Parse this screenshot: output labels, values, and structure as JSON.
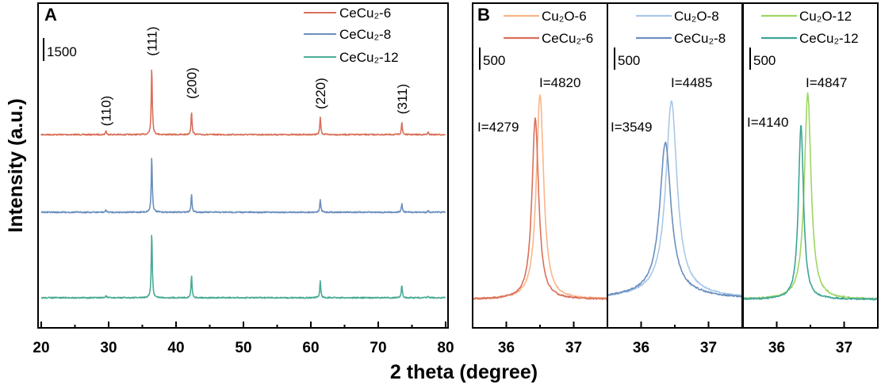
{
  "chart_data": [
    {
      "type": "line",
      "panel_label": "A",
      "xlabel": "2 theta (degree)",
      "ylabel": "Intensity (a.u.)",
      "xlim": [
        20,
        80
      ],
      "xticks": [
        "20",
        "30",
        "40",
        "50",
        "60",
        "70",
        "80"
      ],
      "scale_bar": "1500",
      "scale_bar_value": 1500,
      "legend_placement": "top-right",
      "reflections": [
        {
          "label": "(110)",
          "x": 29.6
        },
        {
          "label": "(111)",
          "x": 36.4
        },
        {
          "label": "(200)",
          "x": 42.3
        },
        {
          "label": "(220)",
          "x": 61.4
        },
        {
          "label": "(311)",
          "x": 73.5
        }
      ],
      "series": [
        {
          "name": "CeCu₂-6",
          "color": "#d9705a",
          "peak_positions": [
            29.6,
            36.4,
            42.3,
            61.4,
            73.5,
            77.4
          ],
          "peak_heights": [
            260,
            4450,
            1500,
            1140,
            780,
            150
          ]
        },
        {
          "name": "CeCu₂-8",
          "color": "#6b8fbf",
          "peak_positions": [
            29.6,
            36.4,
            42.3,
            61.4,
            73.5,
            77.4
          ],
          "peak_heights": [
            150,
            3670,
            1190,
            830,
            570,
            100
          ]
        },
        {
          "name": "CeCu₂-12",
          "color": "#4aab94",
          "peak_positions": [
            29.6,
            36.4,
            42.3,
            61.4,
            73.5,
            77.4
          ],
          "peak_heights": [
            150,
            4300,
            1450,
            1140,
            830,
            100
          ]
        }
      ]
    },
    {
      "type": "line",
      "panel_label": "B",
      "xlim": [
        35.5,
        37.5
      ],
      "xticks": [
        "36",
        "37"
      ],
      "scale_bar": "500",
      "scale_bar_value": 500,
      "subpanels": [
        {
          "series": [
            {
              "name": "Cu₂O-6",
              "color": "#fbb58a",
              "center": 36.5,
              "peak_intensity": 4820,
              "fwhm": 0.13
            },
            {
              "name": "CeCu₂-6",
              "color": "#d9705a",
              "center": 36.43,
              "peak_intensity": 4279,
              "fwhm": 0.12
            }
          ],
          "annotations": [
            "I=4820",
            "I=4279"
          ]
        },
        {
          "series": [
            {
              "name": "Cu₂O-8",
              "color": "#a9c8e6",
              "center": 36.45,
              "peak_intensity": 4485,
              "fwhm": 0.2
            },
            {
              "name": "CeCu₂-8",
              "color": "#6b8fbf",
              "center": 36.36,
              "peak_intensity": 3549,
              "fwhm": 0.2
            }
          ],
          "annotations": [
            "I=4485",
            "I=3549"
          ]
        },
        {
          "series": [
            {
              "name": "Cu₂O-12",
              "color": "#9fd663",
              "center": 36.46,
              "peak_intensity": 4847,
              "fwhm": 0.12
            },
            {
              "name": "CeCu₂-12",
              "color": "#3ea595",
              "center": 36.36,
              "peak_intensity": 4140,
              "fwhm": 0.09
            }
          ],
          "annotations": [
            "I=4847",
            "I=4140"
          ]
        }
      ]
    }
  ]
}
